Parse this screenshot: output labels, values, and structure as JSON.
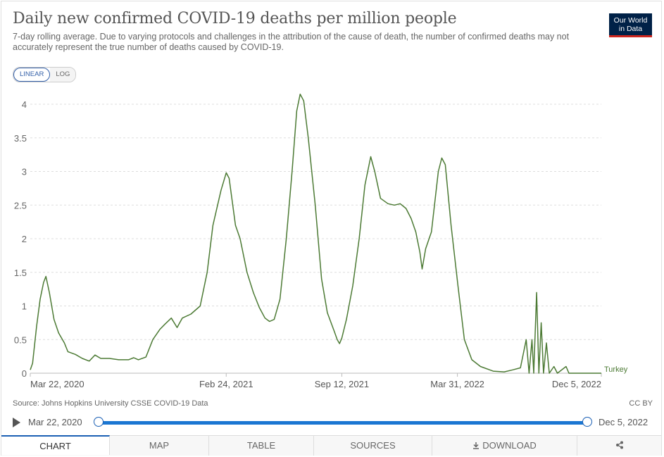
{
  "title": "Daily new confirmed COVID-19 deaths per million people",
  "subtitle": "7-day rolling average. Due to varying protocols and challenges in the attribution of the cause of death, the number of confirmed deaths may not accurately represent the true number of deaths caused by COVID-19.",
  "logo": {
    "line1": "Our World",
    "line2": "in Data",
    "bg": "#002147",
    "accent": "#ce261e"
  },
  "scale": {
    "linear": "LINEAR",
    "log": "LOG",
    "active": "linear"
  },
  "source": "Source: Johns Hopkins University CSSE COVID-19 Data",
  "license": "CC BY",
  "timeline": {
    "start": "Mar 22, 2020",
    "end": "Dec 5, 2022",
    "play_icon": "play-icon"
  },
  "tabs": {
    "chart": "CHART",
    "map": "MAP",
    "table": "TABLE",
    "sources": "SOURCES",
    "download": "DOWNLOAD",
    "share_icon": "share-icon"
  },
  "chart_data": {
    "type": "line",
    "title": "Daily new confirmed COVID-19 deaths per million people",
    "xlabel": "",
    "ylabel": "",
    "x_range": [
      "2020-03-22",
      "2022-12-05"
    ],
    "ylim": [
      0,
      4.2
    ],
    "y_ticks": [
      "0",
      "0.5",
      "1",
      "1.5",
      "2",
      "2.5",
      "3",
      "3.5",
      "4"
    ],
    "x_ticks": [
      "Mar 22, 2020",
      "Feb 24, 2021",
      "Sep 12, 2021",
      "Mar 31, 2022",
      "Dec 5, 2022"
    ],
    "grid": "horizontal dashed",
    "color": "#4c7a34",
    "series": [
      {
        "name": "Turkey",
        "points": [
          [
            "2020-03-22",
            0.05
          ],
          [
            "2020-03-26",
            0.15
          ],
          [
            "2020-04-02",
            0.7
          ],
          [
            "2020-04-08",
            1.1
          ],
          [
            "2020-04-14",
            1.35
          ],
          [
            "2020-04-18",
            1.44
          ],
          [
            "2020-04-24",
            1.2
          ],
          [
            "2020-05-02",
            0.8
          ],
          [
            "2020-05-10",
            0.6
          ],
          [
            "2020-05-20",
            0.45
          ],
          [
            "2020-05-26",
            0.32
          ],
          [
            "2020-06-08",
            0.28
          ],
          [
            "2020-06-20",
            0.22
          ],
          [
            "2020-07-02",
            0.18
          ],
          [
            "2020-07-12",
            0.27
          ],
          [
            "2020-07-22",
            0.22
          ],
          [
            "2020-08-06",
            0.22
          ],
          [
            "2020-08-22",
            0.2
          ],
          [
            "2020-09-08",
            0.2
          ],
          [
            "2020-09-17",
            0.23
          ],
          [
            "2020-09-25",
            0.2
          ],
          [
            "2020-10-08",
            0.24
          ],
          [
            "2020-10-20",
            0.5
          ],
          [
            "2020-11-01",
            0.65
          ],
          [
            "2020-11-10",
            0.73
          ],
          [
            "2020-11-21",
            0.82
          ],
          [
            "2020-12-01",
            0.68
          ],
          [
            "2020-12-10",
            0.82
          ],
          [
            "2020-12-25",
            0.88
          ],
          [
            "2021-01-10",
            1.0
          ],
          [
            "2021-01-22",
            1.5
          ],
          [
            "2021-02-01",
            2.2
          ],
          [
            "2021-02-15",
            2.72
          ],
          [
            "2021-02-24",
            2.98
          ],
          [
            "2021-03-01",
            2.9
          ],
          [
            "2021-03-12",
            2.2
          ],
          [
            "2021-03-20",
            2.0
          ],
          [
            "2021-04-01",
            1.5
          ],
          [
            "2021-04-12",
            1.2
          ],
          [
            "2021-04-22",
            0.98
          ],
          [
            "2021-05-02",
            0.82
          ],
          [
            "2021-05-10",
            0.77
          ],
          [
            "2021-05-18",
            0.8
          ],
          [
            "2021-05-28",
            1.1
          ],
          [
            "2021-06-08",
            2.0
          ],
          [
            "2021-06-18",
            3.0
          ],
          [
            "2021-06-26",
            3.9
          ],
          [
            "2021-07-02",
            4.15
          ],
          [
            "2021-07-08",
            4.05
          ],
          [
            "2021-07-16",
            3.5
          ],
          [
            "2021-07-28",
            2.5
          ],
          [
            "2021-08-08",
            1.4
          ],
          [
            "2021-08-18",
            0.9
          ],
          [
            "2021-08-30",
            0.62
          ],
          [
            "2021-09-04",
            0.5
          ],
          [
            "2021-09-08",
            0.44
          ],
          [
            "2021-09-12",
            0.52
          ],
          [
            "2021-09-20",
            0.8
          ],
          [
            "2021-10-01",
            1.3
          ],
          [
            "2021-10-12",
            2.0
          ],
          [
            "2021-10-22",
            2.8
          ],
          [
            "2021-11-01",
            3.22
          ],
          [
            "2021-11-08",
            3.0
          ],
          [
            "2021-11-18",
            2.6
          ],
          [
            "2021-12-01",
            2.52
          ],
          [
            "2021-12-12",
            2.5
          ],
          [
            "2021-12-22",
            2.52
          ],
          [
            "2022-01-01",
            2.45
          ],
          [
            "2022-01-10",
            2.3
          ],
          [
            "2022-01-18",
            2.1
          ],
          [
            "2022-01-25",
            1.8
          ],
          [
            "2022-01-29",
            1.55
          ],
          [
            "2022-02-04",
            1.85
          ],
          [
            "2022-02-14",
            2.1
          ],
          [
            "2022-02-26",
            3.0
          ],
          [
            "2022-03-04",
            3.2
          ],
          [
            "2022-03-10",
            3.1
          ],
          [
            "2022-03-20",
            2.2
          ],
          [
            "2022-04-01",
            1.3
          ],
          [
            "2022-04-12",
            0.5
          ],
          [
            "2022-04-25",
            0.2
          ],
          [
            "2022-05-10",
            0.1
          ],
          [
            "2022-06-01",
            0.03
          ],
          [
            "2022-06-20",
            0.02
          ],
          [
            "2022-07-05",
            0.05
          ],
          [
            "2022-07-18",
            0.08
          ],
          [
            "2022-07-28",
            0.5
          ],
          [
            "2022-08-02",
            0.0
          ],
          [
            "2022-08-07",
            0.5
          ],
          [
            "2022-08-10",
            0.0
          ],
          [
            "2022-08-15",
            1.2
          ],
          [
            "2022-08-19",
            0.0
          ],
          [
            "2022-08-23",
            0.75
          ],
          [
            "2022-08-27",
            0.0
          ],
          [
            "2022-09-01",
            0.45
          ],
          [
            "2022-09-06",
            0.0
          ],
          [
            "2022-09-14",
            0.1
          ],
          [
            "2022-09-20",
            0.0
          ],
          [
            "2022-10-05",
            0.1
          ],
          [
            "2022-10-10",
            0.0
          ],
          [
            "2022-12-05",
            0.0
          ]
        ]
      }
    ]
  }
}
